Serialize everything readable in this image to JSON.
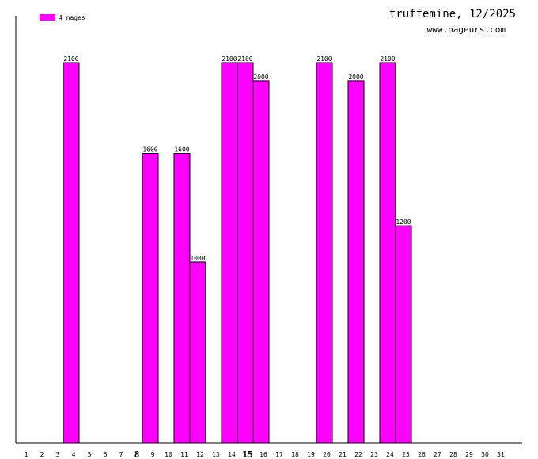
{
  "chart_data": {
    "type": "bar",
    "title": "truffemine, 12/2025",
    "subtitle": "www.nageurs.com",
    "legend": {
      "label": "4 nages",
      "color": "#ff00ff",
      "position": "top-left"
    },
    "bar_color": "#ff00ff",
    "ylim": [
      0,
      2300
    ],
    "categories": [
      "1",
      "2",
      "3",
      "4",
      "5",
      "6",
      "7",
      "8",
      "9",
      "10",
      "11",
      "12",
      "13",
      "14",
      "15",
      "16",
      "17",
      "18",
      "19",
      "20",
      "21",
      "22",
      "23",
      "24",
      "25",
      "26",
      "27",
      "28",
      "29",
      "30",
      "31"
    ],
    "bold_categories": [
      "8",
      "15"
    ],
    "values": [
      null,
      null,
      2100,
      null,
      null,
      null,
      null,
      1600,
      null,
      1600,
      1000,
      null,
      2100,
      2100,
      2000,
      null,
      null,
      null,
      2100,
      null,
      2000,
      null,
      2100,
      1200,
      null,
      null,
      null,
      null,
      null,
      null,
      null
    ],
    "data_labels": [
      "",
      "",
      "2100",
      "",
      "",
      "",
      "",
      "1600",
      "",
      "1600",
      "1000",
      "",
      "2100",
      "2100",
      "2000",
      "",
      "",
      "",
      "2100",
      "",
      "2000",
      "",
      "2100",
      "1200",
      "",
      "",
      "",
      "",
      "",
      "",
      ""
    ]
  }
}
